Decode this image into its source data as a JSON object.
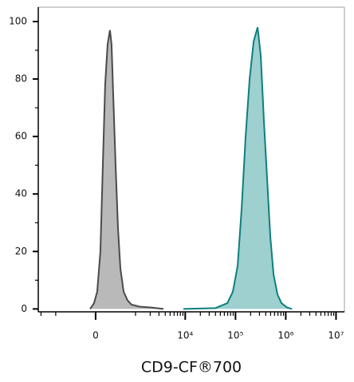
{
  "chart_data": {
    "type": "histogram-area",
    "x_label": "CD9-CF®700",
    "xscale": "biexponential",
    "xlim": [
      -2270,
      14700000
    ],
    "xticks": [
      0,
      {
        "value": 10000,
        "label": "10⁴"
      },
      {
        "value": 100000,
        "label": "10⁵"
      },
      {
        "value": 1000000,
        "label": "10⁶"
      },
      {
        "value": 10000000,
        "label": "10⁷"
      }
    ],
    "xminorticks": [
      -2000,
      -1000,
      1000,
      2000,
      3000,
      4000,
      5000,
      6000,
      7000,
      8000,
      9000,
      20000,
      30000,
      40000,
      50000,
      60000,
      70000,
      80000,
      90000,
      200000,
      300000,
      400000,
      500000,
      600000,
      700000,
      800000,
      900000,
      2000000,
      3000000,
      4000000,
      5000000,
      6000000,
      7000000,
      8000000,
      9000000
    ],
    "ylim": [
      -1,
      105
    ],
    "yticks": [
      0,
      20,
      40,
      60,
      80,
      100
    ],
    "yminorticks": [
      10,
      30,
      50,
      70,
      90
    ],
    "series": [
      {
        "color": "#4a4a4a",
        "fill": "#b9b9b9",
        "x": [
          -85,
          -24,
          24,
          73,
          111,
          149,
          190,
          233,
          263,
          295,
          346,
          401,
          461,
          549,
          673,
          822,
          1211,
          2119,
          3683
        ],
        "values": [
          0,
          2,
          6,
          20,
          50,
          78,
          92,
          97,
          92,
          75,
          50,
          28,
          14,
          6,
          3,
          1.5,
          0.8,
          0.5,
          0
        ]
      },
      {
        "color": "#0e7f7d",
        "fill": "#9dd0cf",
        "x": [
          9190,
          39670,
          68650,
          88600,
          110400,
          132600,
          159100,
          191000,
          229400,
          275400,
          318600,
          368800,
          426700,
          493700,
          571700,
          686400,
          824200,
          1064600,
          1325800
        ],
        "values": [
          0,
          0.3,
          2,
          6,
          15,
          35,
          60,
          80,
          93,
          98,
          88,
          65,
          45,
          25,
          12,
          5,
          2,
          0.5,
          0
        ]
      }
    ]
  }
}
